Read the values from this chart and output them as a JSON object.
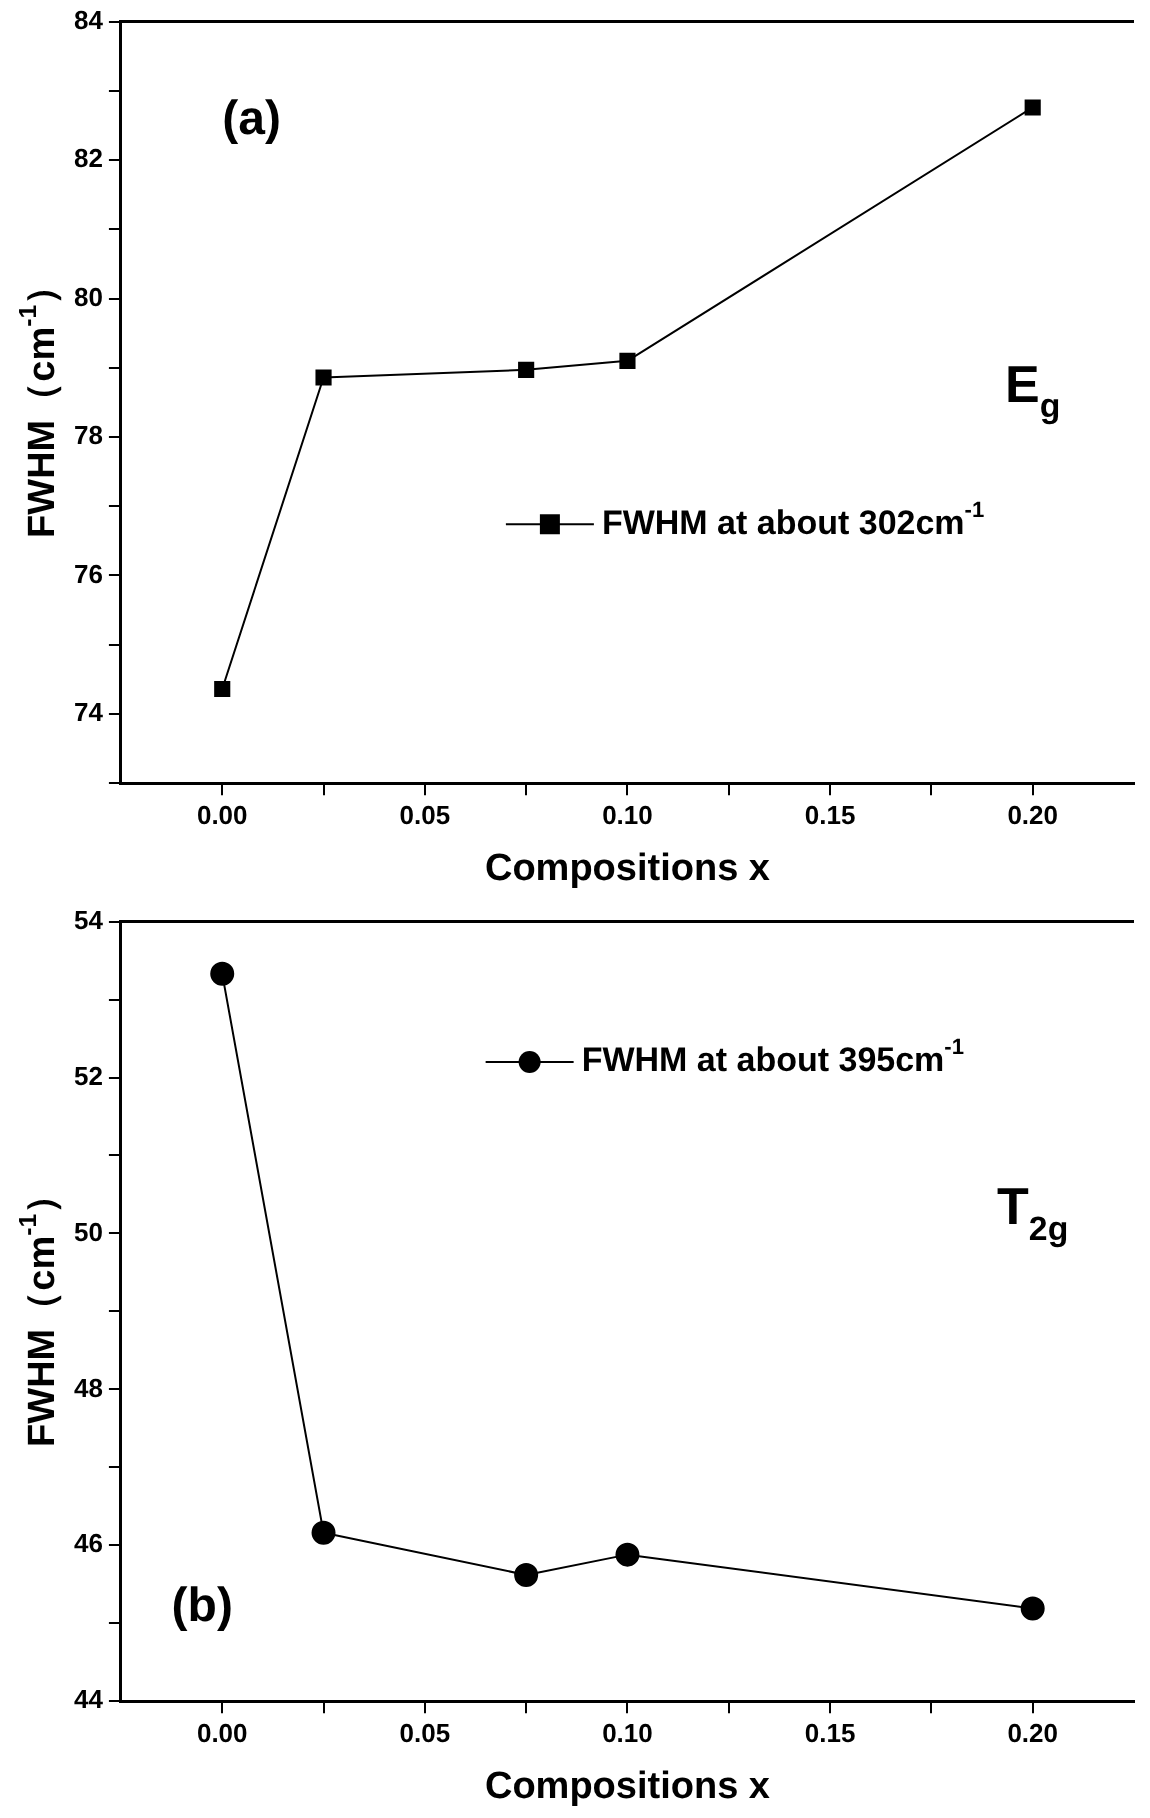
{
  "chart_data": [
    {
      "type": "line",
      "xlabel": "Compositions x",
      "ylabel": "FWHM（cm$^{-1}$）",
      "x": [
        0,
        0.025,
        0.075,
        0.1,
        0.2
      ],
      "series": [
        {
          "name": "FWHM at about 302cm$^{-1}$",
          "color": "#000000",
          "values": [
            74.36,
            78.86,
            78.97,
            79.1,
            82.76
          ]
        }
      ],
      "xlim": [
        -0.025,
        0.225
      ],
      "xticks": [
        {
          "value": 0,
          "label": "0.00"
        },
        {
          "value": 0.025,
          "label": null
        },
        {
          "value": 0.05,
          "label": "0.05"
        },
        {
          "value": 0.075,
          "label": null
        },
        {
          "value": 0.1,
          "label": "0.10"
        },
        {
          "value": 0.125,
          "label": null
        },
        {
          "value": 0.15,
          "label": "0.15"
        },
        {
          "value": 0.175,
          "label": null
        },
        {
          "value": 0.2,
          "label": "0.20"
        }
      ],
      "ylim": [
        73,
        84
      ],
      "yticks": [
        {
          "value": 73,
          "label": null
        },
        74,
        {
          "value": 75,
          "label": null
        },
        76,
        {
          "value": 77,
          "label": null
        },
        78,
        {
          "value": 79,
          "label": null
        },
        80,
        {
          "value": 81,
          "label": null
        },
        82,
        {
          "value": 83,
          "label": null
        },
        84
      ],
      "marker": "square",
      "line_style": "solid",
      "grid": false,
      "legend": "right",
      "annotations": [
        "(a)",
        "E$_{g}$"
      ]
    },
    {
      "type": "line",
      "xlabel": "Compositions x",
      "ylabel": "FWHM（cm$^{-1}$）",
      "x": [
        0,
        0.025,
        0.075,
        0.1,
        0.2
      ],
      "series": [
        {
          "name": "FWHM at about 395cm$^{-1}$",
          "color": "#000000",
          "values": [
            53.33,
            46.16,
            45.62,
            45.88,
            45.19
          ]
        }
      ],
      "xlim": [
        -0.025,
        0.225
      ],
      "xticks": [
        {
          "value": 0,
          "label": "0.00"
        },
        {
          "value": 0.025,
          "label": null
        },
        {
          "value": 0.05,
          "label": "0.05"
        },
        {
          "value": 0.075,
          "label": null
        },
        {
          "value": 0.1,
          "label": "0.10"
        },
        {
          "value": 0.125,
          "label": null
        },
        {
          "value": 0.15,
          "label": "0.15"
        },
        {
          "value": 0.175,
          "label": null
        },
        {
          "value": 0.2,
          "label": "0.20"
        }
      ],
      "ylim": [
        44,
        54
      ],
      "yticks": [
        44,
        {
          "value": 45,
          "label": null
        },
        46,
        {
          "value": 47,
          "label": null
        },
        48,
        {
          "value": 49,
          "label": null
        },
        50,
        {
          "value": 51,
          "label": null
        },
        52,
        {
          "value": 53,
          "label": null
        },
        54
      ],
      "marker": "circle",
      "line_style": "solid",
      "grid": false,
      "legend": "top right",
      "annotations": [
        "(b)",
        "T$_{2g}$"
      ]
    }
  ]
}
